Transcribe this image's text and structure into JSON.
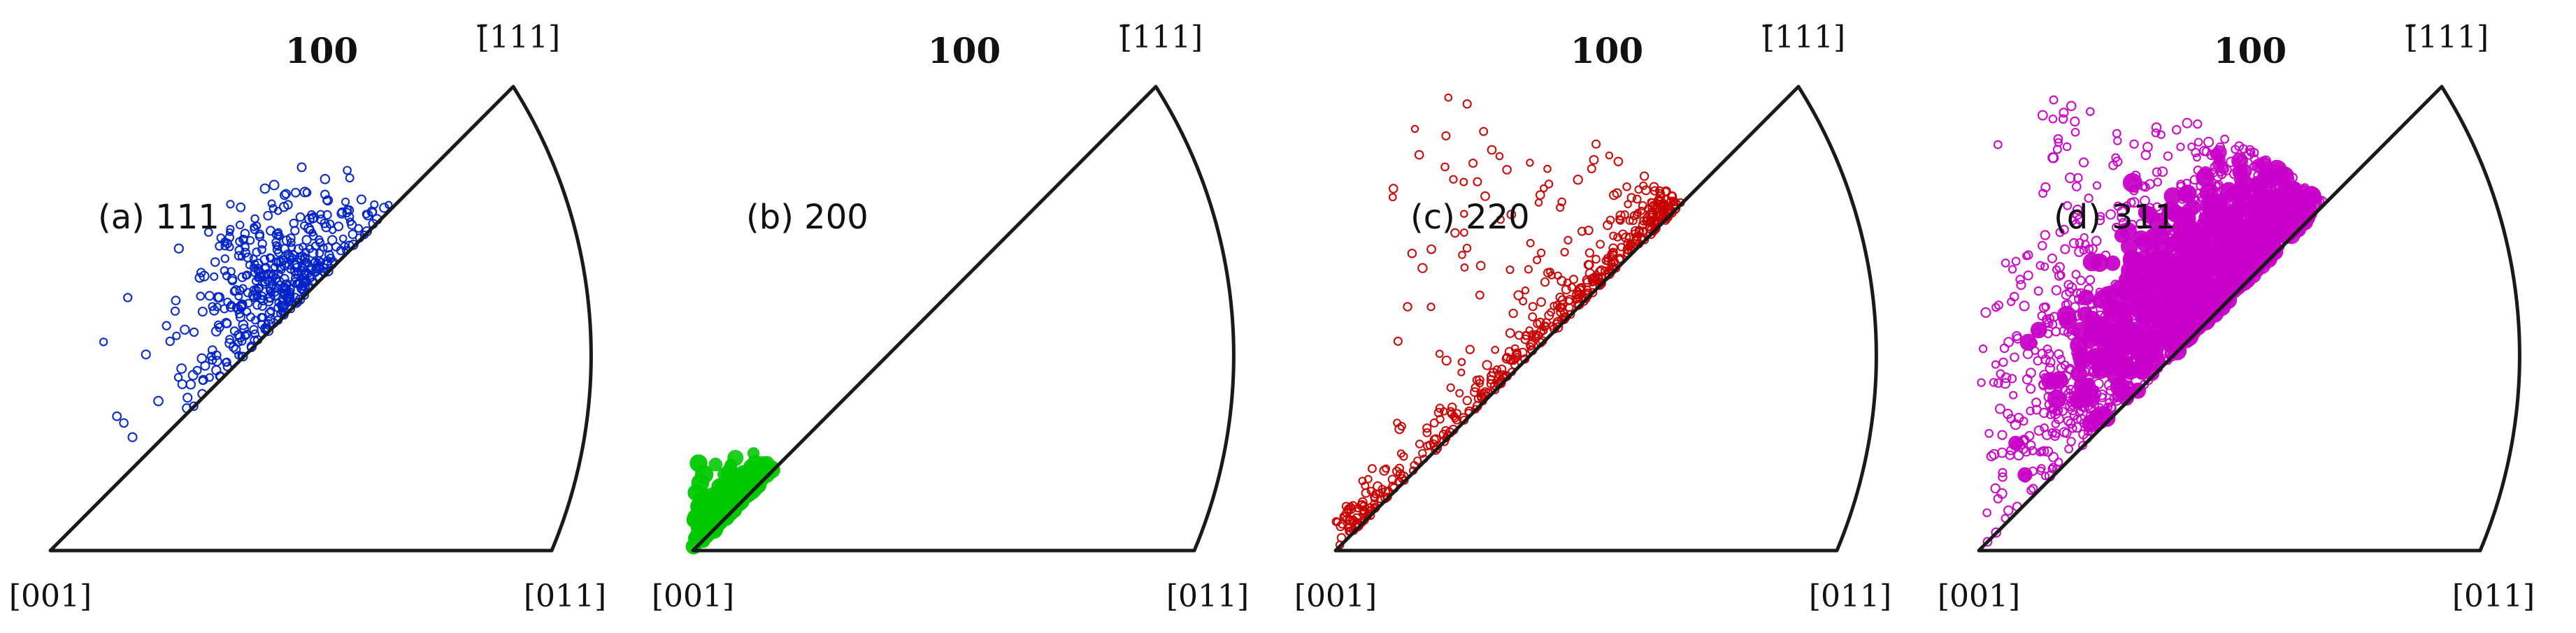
{
  "figure": {
    "panels": [
      {
        "id": "a",
        "caption": "(a) 111",
        "top_label": "100",
        "corner_labels": {
          "bottom_left": "[001]",
          "bottom_right": "[011]",
          "top": "[̄111]"
        },
        "color": "#0022c8",
        "distribution": {
          "dense_region": "near-[̄111]",
          "secondary_region": "middle-to-[011]"
        }
      },
      {
        "id": "b",
        "caption": "(b) 200",
        "top_label": "100",
        "corner_labels": {
          "bottom_left": "[001]",
          "bottom_right": "[011]",
          "top": "[̄111]"
        },
        "color": "#00c800",
        "distribution": {
          "dense_region": "near-[001]",
          "secondary_region": "along-[001]-[011]-edge"
        }
      },
      {
        "id": "c",
        "caption": "(c) 220",
        "top_label": "100",
        "corner_labels": {
          "bottom_left": "[001]",
          "bottom_right": "[011]",
          "top": "[̄111]"
        },
        "color": "#c80000",
        "distribution": {
          "dense_region": "near-[011]",
          "secondary_region": "along-[001]-[̄111]-edge-and-right-arc"
        }
      },
      {
        "id": "d",
        "caption": "(d) 311",
        "top_label": "100",
        "corner_labels": {
          "bottom_left": "[001]",
          "bottom_right": "[011]",
          "top": "[̄111]"
        },
        "color": "#c800c8",
        "distribution": {
          "dense_region": "left-edge-midway",
          "secondary_region": "broad-throughout-triangle"
        }
      }
    ]
  }
}
